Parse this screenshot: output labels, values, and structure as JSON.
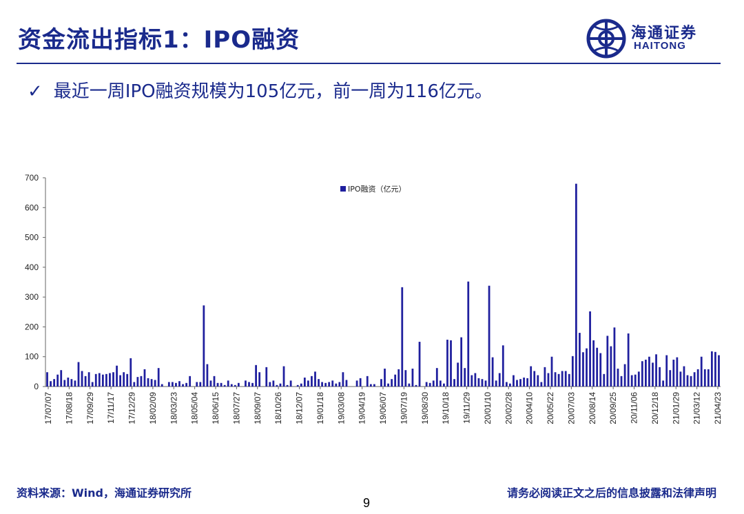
{
  "header": {
    "title": "资金流出指标1：IPO融资",
    "logo_cn": "海通证券",
    "logo_en": "HAITONG"
  },
  "bullet": {
    "check": "✓",
    "text": "最近一周IPO融资规模为105亿元，前一周为116亿元。"
  },
  "footer": {
    "source": "资料来源：Wind，海通证券研究所",
    "disclaimer": "请务必阅读正文之后的信息披露和法律声明",
    "page": "9"
  },
  "colors": {
    "brand": "#1a2a8c",
    "bar": "#1f1f9e"
  },
  "chart_data": {
    "type": "bar",
    "legend": "IPO融资（亿元）",
    "legend_position": "top-center",
    "ylim": [
      0,
      700
    ],
    "yticks": [
      0,
      100,
      200,
      300,
      400,
      500,
      600,
      700
    ],
    "xtick_labels": [
      "17/07/07",
      "17/08/18",
      "17/09/29",
      "17/11/17",
      "17/12/29",
      "18/02/09",
      "18/03/23",
      "18/05/04",
      "18/06/15",
      "18/07/27",
      "18/09/07",
      "18/10/26",
      "18/12/07",
      "19/01/18",
      "19/03/08",
      "19/04/19",
      "19/06/07",
      "19/07/19",
      "19/08/30",
      "19/10/18",
      "19/11/29",
      "20/01/10",
      "20/02/28",
      "20/04/10",
      "20/05/22",
      "20/07/03",
      "20/08/14",
      "20/09/25",
      "20/11/06",
      "20/12/18",
      "21/01/29",
      "21/03/12",
      "21/04/23"
    ],
    "values": [
      48,
      18,
      25,
      40,
      55,
      22,
      30,
      25,
      20,
      82,
      52,
      35,
      48,
      15,
      42,
      45,
      40,
      42,
      45,
      48,
      70,
      38,
      48,
      42,
      95,
      15,
      32,
      35,
      58,
      28,
      25,
      22,
      62,
      8,
      0,
      15,
      15,
      12,
      18,
      8,
      12,
      35,
      0,
      15,
      15,
      272,
      75,
      20,
      35,
      12,
      12,
      5,
      20,
      8,
      5,
      12,
      0,
      20,
      15,
      12,
      72,
      48,
      0,
      65,
      15,
      20,
      5,
      10,
      68,
      5,
      20,
      0,
      5,
      10,
      30,
      20,
      35,
      50,
      25,
      15,
      12,
      15,
      20,
      10,
      15,
      48,
      22,
      0,
      0,
      20,
      28,
      0,
      35,
      8,
      8,
      0,
      25,
      60,
      10,
      25,
      40,
      58,
      333,
      55,
      10,
      60,
      5,
      150,
      0,
      15,
      12,
      20,
      62,
      20,
      10,
      157,
      155,
      25,
      80,
      165,
      62,
      352,
      38,
      45,
      28,
      25,
      20,
      338,
      98,
      20,
      45,
      138,
      15,
      10,
      38,
      22,
      25,
      30,
      28,
      68,
      52,
      38,
      15,
      65,
      45,
      100,
      48,
      42,
      52,
      52,
      42,
      102,
      680,
      180,
      115,
      128,
      252,
      155,
      130,
      112,
      42,
      170,
      135,
      198,
      60,
      35,
      75,
      178,
      38,
      40,
      50,
      85,
      90,
      100,
      80,
      108,
      65,
      20,
      105,
      55,
      90,
      98,
      50,
      68,
      38,
      35,
      48,
      58,
      100,
      58,
      58,
      118,
      116,
      105
    ]
  }
}
